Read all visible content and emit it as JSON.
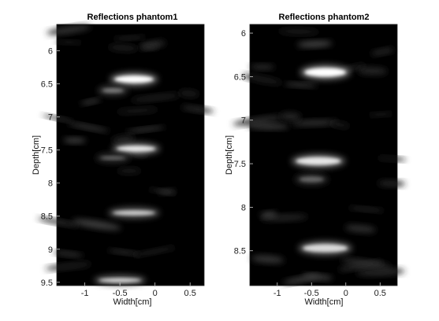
{
  "chart_data": [
    {
      "type": "heatmap",
      "title": "Reflections phantom1",
      "xlabel": "Width[cm]",
      "ylabel": "Depth[cm]",
      "xlim": [
        -1.4,
        0.7
      ],
      "ylim": [
        5.6,
        9.55
      ],
      "y_reversed": true,
      "xticks": [
        "-1",
        "-0.5",
        "0",
        "0.5"
      ],
      "xtick_values": [
        -1,
        -0.5,
        0,
        0.5
      ],
      "yticks": [
        "6",
        "6.5",
        "7",
        "7.5",
        "8",
        "8.5",
        "9",
        "9.5"
      ],
      "ytick_values": [
        6,
        6.5,
        7,
        7.5,
        8,
        8.5,
        9,
        9.5
      ],
      "colormap": "gray",
      "reflectors": [
        {
          "x": -0.3,
          "depth": 6.43,
          "width": 0.55,
          "height": 0.11,
          "intensity": 1.0
        },
        {
          "x": -0.6,
          "depth": 6.6,
          "width": 0.3,
          "height": 0.06,
          "intensity": 0.5
        },
        {
          "x": -0.27,
          "depth": 7.48,
          "width": 0.55,
          "height": 0.09,
          "intensity": 0.9
        },
        {
          "x": -0.6,
          "depth": 7.62,
          "width": 0.35,
          "height": 0.05,
          "intensity": 0.4
        },
        {
          "x": -0.3,
          "depth": 8.45,
          "width": 0.6,
          "height": 0.07,
          "intensity": 0.8
        },
        {
          "x": -0.5,
          "depth": 9.47,
          "width": 0.6,
          "height": 0.06,
          "intensity": 0.85
        }
      ]
    },
    {
      "type": "heatmap",
      "title": "Reflections phantom2",
      "xlabel": "Width[cm]",
      "ylabel": "Depth[cm]",
      "xlim": [
        -1.4,
        0.75
      ],
      "ylim": [
        5.9,
        8.9
      ],
      "y_reversed": true,
      "xticks": [
        "-1",
        "-0.5",
        "0",
        "0.5"
      ],
      "xtick_values": [
        -1,
        -0.5,
        0,
        0.5
      ],
      "yticks": [
        "6",
        "6.5",
        "7",
        "7.5",
        "8",
        "8.5"
      ],
      "ytick_values": [
        6,
        6.5,
        7,
        7.5,
        8,
        8.5
      ],
      "colormap": "gray",
      "reflectors": [
        {
          "x": -0.3,
          "depth": 6.45,
          "width": 0.6,
          "height": 0.1,
          "intensity": 1.0
        },
        {
          "x": -0.4,
          "depth": 7.47,
          "width": 0.65,
          "height": 0.09,
          "intensity": 0.9
        },
        {
          "x": -0.5,
          "depth": 7.68,
          "width": 0.35,
          "height": 0.06,
          "intensity": 0.4
        },
        {
          "x": -0.3,
          "depth": 8.47,
          "width": 0.65,
          "height": 0.09,
          "intensity": 0.85
        }
      ]
    }
  ]
}
